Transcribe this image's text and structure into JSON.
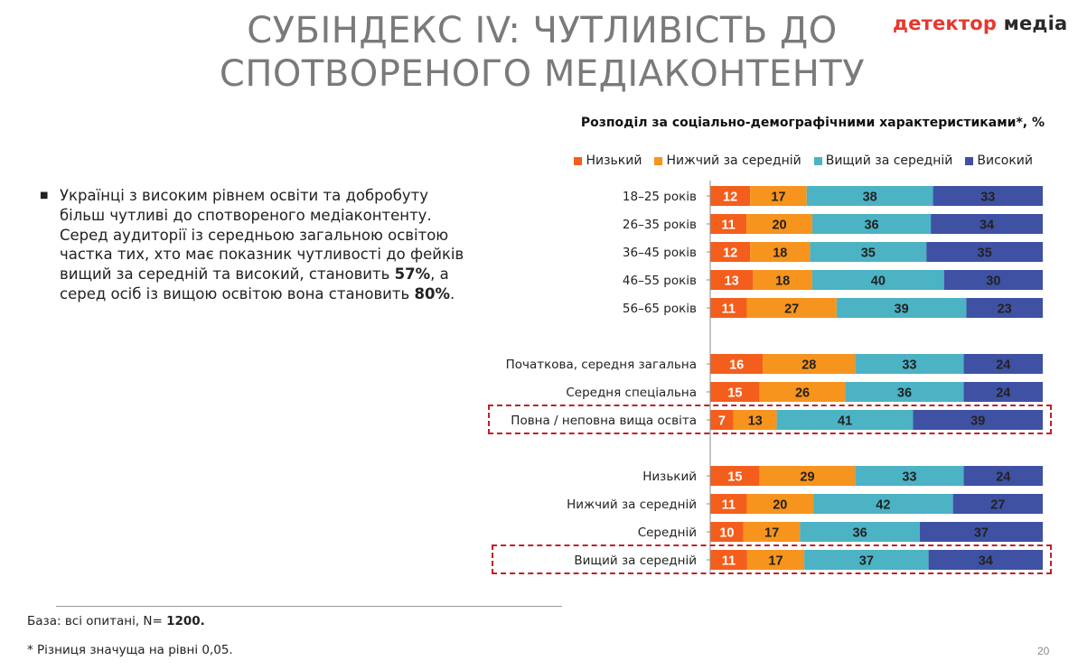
{
  "header": {
    "title_line1": "СУБІНДЕКС IV: ЧУТЛИВІСТЬ ДО",
    "title_line2": "СПОТВОРЕНОГО МЕДІАКОНТЕНТУ",
    "logo_part1": "детектор",
    "logo_part2": " медіа"
  },
  "bullet": {
    "text1": "Українці з високим рівнем освіти та добробуту більш чутливі до спотвореного медіаконтенту. Серед аудиторії із середньою загальною освітою частка тих, хто має показник чутливості до фейків вищий за середній та високий, становить ",
    "value1": "57%",
    "text2": ", а серед осіб із вищою освітою вона становить ",
    "value2": "80%",
    "text3": "."
  },
  "footer": {
    "base_label": "База: всі опитані, N= ",
    "base_value": "1200.",
    "significance_note": "* Різниця значуща на рівні 0,05.",
    "page_number": "20"
  },
  "colors": {
    "low": "#f45e1c",
    "below_avg": "#f7941d",
    "above_avg": "#4bb3c4",
    "high": "#3f51a3",
    "highlight_border": "#c0212a"
  },
  "chart_data": {
    "type": "bar",
    "orientation": "horizontal",
    "stacked": true,
    "title": "Розподіл за соціально-демографічними характеристиками*, %",
    "legend_position": "top",
    "categories": [
      "18–25 років",
      "26–35 років",
      "36–45 років",
      "46–55 років",
      "56–65 років",
      "Початкова, середня загальна",
      "Середня спеціальна",
      "Повна / неповна вища освіта",
      "Низький",
      "Нижчий за середній",
      "Середній",
      "Вищий за середній"
    ],
    "groups": [
      [
        0,
        1,
        2,
        3,
        4
      ],
      [
        5,
        6,
        7
      ],
      [
        8,
        9,
        10,
        11
      ]
    ],
    "highlighted": [
      "Повна / неповна вища освіта",
      "Вищий за середній"
    ],
    "series": [
      {
        "name": "Низький",
        "color": "#f45e1c",
        "values": [
          12,
          11,
          12,
          13,
          11,
          16,
          15,
          7,
          15,
          11,
          10,
          11
        ]
      },
      {
        "name": "Нижчий за середній",
        "color": "#f7941d",
        "values": [
          17,
          20,
          18,
          18,
          27,
          28,
          26,
          13,
          29,
          20,
          17,
          17
        ]
      },
      {
        "name": "Вищий за середній",
        "color": "#4bb3c4",
        "values": [
          38,
          36,
          35,
          40,
          39,
          33,
          36,
          41,
          33,
          42,
          36,
          37
        ]
      },
      {
        "name": "Високий",
        "color": "#3f51a3",
        "values": [
          33,
          34,
          35,
          30,
          23,
          24,
          24,
          39,
          24,
          27,
          37,
          34
        ]
      }
    ]
  }
}
